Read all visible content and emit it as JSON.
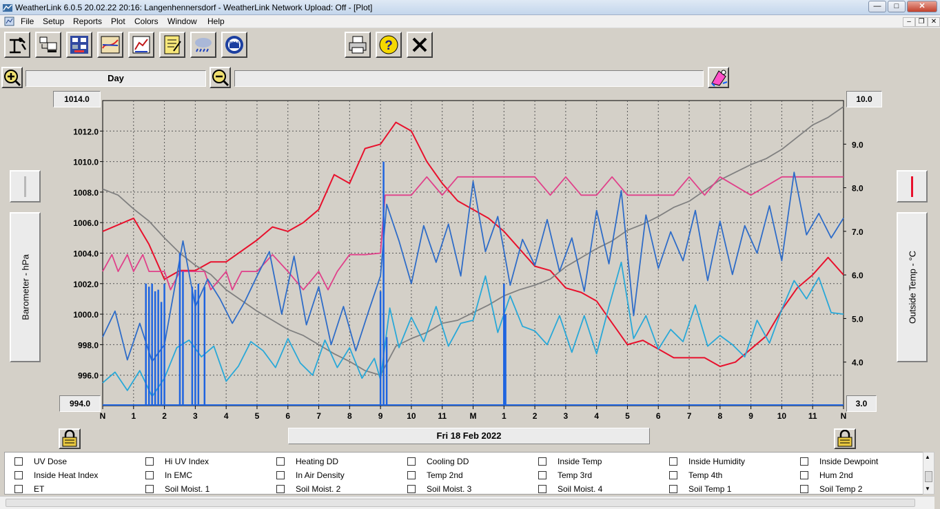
{
  "window": {
    "title": "WeatherLink 6.0.5  20.02.22  20:16: Langenhennersdorf - WeatherLink Network Upload: Off - [Plot]"
  },
  "menu": {
    "items": [
      "File",
      "Setup",
      "Reports",
      "Plot",
      "Colors",
      "Window",
      "Help"
    ]
  },
  "toolbar": {
    "icons": [
      "station-icon",
      "download-icon",
      "bulletin-icon",
      "plot-icon",
      "browse-icon",
      "notes-icon",
      "weather-icon",
      "noaa-icon",
      "print-icon",
      "help-icon",
      "close-icon"
    ],
    "noaa_label": "NOAA",
    "help_label": "?"
  },
  "span": {
    "label": "Day"
  },
  "left_axis": {
    "label": "Barometer - hPa",
    "max_label": "1014.0",
    "min_label": "994.0",
    "ticks": [
      "1012.0",
      "1010.0",
      "1008.0",
      "1006.0",
      "1004.0",
      "1002.0",
      "1000.0",
      "998.0",
      "996.0"
    ],
    "color": "#c0c0c0"
  },
  "right_axis": {
    "label": "Outside Temp - °C",
    "max_label": "10.0",
    "min_label": "3.0",
    "ticks": [
      "9.0",
      "8.0",
      "7.0",
      "6.0",
      "5.0",
      "4.0"
    ],
    "color": "#e8102c"
  },
  "date_label": "Fri 18 Feb 2022",
  "chart_data": {
    "type": "line",
    "x_tick_labels": [
      "N",
      "1",
      "2",
      "3",
      "4",
      "5",
      "6",
      "7",
      "8",
      "9",
      "10",
      "11",
      "M",
      "1",
      "2",
      "3",
      "4",
      "5",
      "6",
      "7",
      "8",
      "9",
      "10",
      "11",
      "N"
    ],
    "ylim_left": [
      994,
      1014
    ],
    "ylim_right": [
      3,
      10
    ],
    "grid": true,
    "series": [
      {
        "axis": "right",
        "color": "#e8102c",
        "hours": [
          0,
          1,
          1.5,
          2,
          2.5,
          3,
          3.5,
          4,
          5,
          5.5,
          6,
          6.5,
          7,
          7.5,
          8,
          8.5,
          9,
          9.5,
          10,
          10.5,
          11,
          11.5,
          12,
          12.5,
          13,
          13.5,
          14,
          14.5,
          15,
          15.5,
          16,
          16.5,
          17,
          17.5,
          18,
          18.5,
          19,
          19.5,
          20,
          20.5,
          21,
          21.5,
          22,
          22.5,
          23,
          23.5,
          24
        ],
        "values": [
          7.0,
          7.3,
          6.7,
          5.9,
          6.1,
          6.1,
          6.3,
          6.3,
          6.8,
          7.1,
          7.0,
          7.2,
          7.5,
          8.3,
          8.1,
          8.9,
          9.0,
          9.5,
          9.3,
          8.6,
          8.1,
          7.7,
          7.5,
          7.3,
          7.0,
          6.6,
          6.2,
          6.1,
          5.7,
          5.6,
          5.4,
          4.9,
          4.4,
          4.5,
          4.3,
          4.1,
          4.1,
          4.1,
          3.9,
          4.0,
          4.3,
          4.6,
          5.2,
          5.7,
          6.0,
          6.4,
          6.0
        ]
      },
      {
        "axis": "left",
        "color": "#808080",
        "hours": [
          0,
          0.5,
          1,
          1.5,
          2,
          2.5,
          3,
          3.5,
          4,
          4.5,
          5,
          5.5,
          6,
          6.5,
          7,
          7.5,
          8,
          8.5,
          9,
          9.5,
          10,
          10.5,
          11,
          11.5,
          12,
          12.5,
          13,
          13.5,
          14,
          14.5,
          15,
          15.5,
          16,
          16.5,
          17,
          17.5,
          18,
          18.5,
          19,
          19.5,
          20,
          20.5,
          21,
          21.5,
          22,
          22.5,
          23,
          23.5,
          24
        ],
        "values": [
          1008.2,
          1007.8,
          1006.9,
          1006.1,
          1005.0,
          1004.0,
          1003.2,
          1002.6,
          1001.6,
          1000.9,
          1000.2,
          999.6,
          999.0,
          998.6,
          998.0,
          997.4,
          996.9,
          996.3,
          996.0,
          997.9,
          998.4,
          998.8,
          999.4,
          999.6,
          1000.1,
          1000.6,
          1001.2,
          1001.6,
          1001.9,
          1002.3,
          1003.1,
          1003.7,
          1004.3,
          1004.8,
          1005.5,
          1005.9,
          1006.4,
          1007.0,
          1007.4,
          1008.1,
          1008.8,
          1009.3,
          1009.8,
          1010.2,
          1010.8,
          1011.6,
          1012.4,
          1012.9,
          1013.6
        ]
      },
      {
        "axis": "left",
        "color": "#e0408a",
        "hours": [
          0,
          0.3,
          0.5,
          0.8,
          1.0,
          1.3,
          1.5,
          2.0,
          2.2,
          2.5,
          3,
          3.3,
          3.5,
          4,
          4.2,
          4.5,
          5,
          5.5,
          6,
          6.5,
          7,
          7.3,
          7.6,
          8,
          8.5,
          9,
          9.15,
          10,
          10.5,
          11,
          11.5,
          12,
          12.5,
          13,
          14,
          14.5,
          15,
          15.5,
          16,
          16.5,
          17,
          17.5,
          18,
          18.5,
          19,
          19.5,
          20,
          21,
          22,
          23,
          24
        ],
        "values": [
          1002.8,
          1003.9,
          1002.8,
          1003.9,
          1002.8,
          1003.9,
          1002.8,
          1002.8,
          1001.6,
          1002.8,
          1002.8,
          1002.8,
          1001.6,
          1002.8,
          1001.6,
          1002.8,
          1002.8,
          1003.9,
          1002.8,
          1001.6,
          1002.8,
          1001.6,
          1002.8,
          1003.9,
          1003.9,
          1004.0,
          1007.8,
          1007.8,
          1009.0,
          1007.8,
          1009.0,
          1009.0,
          1009.0,
          1009.0,
          1009.0,
          1007.8,
          1009.0,
          1007.8,
          1007.8,
          1009.0,
          1007.8,
          1007.8,
          1007.8,
          1007.8,
          1009.0,
          1007.8,
          1009.0,
          1007.8,
          1009.0,
          1009.0,
          1009.0
        ]
      },
      {
        "axis": "left",
        "color": "#2e6cc8",
        "hours": [
          0,
          0.4,
          0.8,
          1.2,
          1.6,
          2.0,
          2.4,
          2.6,
          3.0,
          3.4,
          3.8,
          4.2,
          4.6,
          5.0,
          5.4,
          5.8,
          6.2,
          6.6,
          7.0,
          7.4,
          7.8,
          8.2,
          8.6,
          9.0,
          9.2,
          9.6,
          10.0,
          10.4,
          10.8,
          11.2,
          11.6,
          12.0,
          12.4,
          12.8,
          13.2,
          13.6,
          14.0,
          14.4,
          14.8,
          15.2,
          15.6,
          16.0,
          16.4,
          16.8,
          17.2,
          17.6,
          18.0,
          18.4,
          18.8,
          19.2,
          19.6,
          20.0,
          20.4,
          20.8,
          21.2,
          21.6,
          22.0,
          22.4,
          22.8,
          23.2,
          23.6,
          24
        ],
        "values": [
          998.5,
          1000.2,
          997.0,
          999.4,
          996.9,
          998.0,
          1002.5,
          1004.8,
          1000.5,
          1002.3,
          1001.0,
          999.4,
          1000.8,
          1002.5,
          1004.1,
          1000.0,
          1003.8,
          999.3,
          1001.8,
          998.0,
          1000.5,
          997.6,
          1000.1,
          1002.5,
          1007.2,
          1004.8,
          1002.0,
          1005.8,
          1003.4,
          1005.9,
          1002.5,
          1008.7,
          1004.1,
          1006.4,
          1001.9,
          1004.9,
          1003.2,
          1006.2,
          1002.8,
          1005.0,
          1001.5,
          1006.8,
          1003.3,
          1008.1,
          999.9,
          1006.5,
          1003.0,
          1005.4,
          1003.5,
          1006.8,
          1002.2,
          1006.1,
          1002.6,
          1005.8,
          1004.0,
          1007.1,
          1003.5,
          1009.3,
          1005.2,
          1006.6,
          1005.0,
          1006.3
        ]
      },
      {
        "axis": "left",
        "color": "#28a8d8",
        "hours": [
          0,
          0.4,
          0.8,
          1.2,
          1.6,
          2.0,
          2.4,
          2.8,
          3.2,
          3.6,
          4.0,
          4.4,
          4.8,
          5.2,
          5.6,
          6.0,
          6.4,
          6.8,
          7.2,
          7.6,
          8.0,
          8.4,
          8.8,
          9.0,
          9.3,
          9.6,
          10.0,
          10.4,
          10.8,
          11.2,
          11.6,
          12.0,
          12.4,
          12.8,
          13.2,
          13.6,
          14.0,
          14.4,
          14.8,
          15.2,
          15.6,
          16.0,
          16.4,
          16.8,
          17.2,
          17.6,
          18.0,
          18.4,
          18.8,
          19.2,
          19.6,
          20.0,
          20.4,
          20.8,
          21.2,
          21.6,
          22.0,
          22.4,
          22.8,
          23.2,
          23.6,
          24
        ],
        "values": [
          995.5,
          996.2,
          995.0,
          996.3,
          994.6,
          995.8,
          997.8,
          998.3,
          997.2,
          997.9,
          995.6,
          996.6,
          998.2,
          997.6,
          996.5,
          998.4,
          996.8,
          996.0,
          998.3,
          996.5,
          997.8,
          995.8,
          997.1,
          995.7,
          1000.4,
          997.8,
          999.8,
          998.2,
          1000.5,
          997.9,
          999.4,
          999.6,
          1002.5,
          998.8,
          1001.2,
          999.2,
          998.9,
          998.0,
          999.9,
          997.5,
          999.9,
          997.4,
          1000.5,
          1003.4,
          998.4,
          999.9,
          997.7,
          999.0,
          998.2,
          1000.6,
          997.9,
          998.6,
          998.0,
          997.2,
          999.6,
          998.1,
          1000.3,
          1002.2,
          1001.0,
          1002.4,
          1000.1,
          1000.0
        ]
      },
      {
        "axis": "left",
        "color": "#1e64e0",
        "type": "rain-spikes",
        "hours": [
          1.4,
          1.5,
          1.6,
          1.7,
          1.8,
          1.9,
          2.0,
          2.5,
          2.6,
          2.9,
          3.0,
          3.1,
          3.3,
          9.0,
          9.1,
          9.2,
          13.0,
          13.05
        ],
        "values": [
          1002.0,
          1001.8,
          1002.0,
          1001.5,
          1001.6,
          1000.8,
          1002.0,
          1004.0,
          1002.8,
          1001.8,
          1001.6,
          1002.0,
          1001.8,
          1001.5,
          1010.0,
          998.5,
          1002.0,
          1000.0
        ]
      }
    ]
  },
  "legend": {
    "items": [
      "UV Dose",
      "Hi UV Index",
      "Heating DD",
      "Cooling DD",
      "Inside Temp",
      "Inside Humidity",
      "Inside Dewpoint",
      "Inside Heat Index",
      "In EMC",
      "In Air Density",
      "Temp 2nd",
      "Temp 3rd",
      "Temp 4th",
      "Hum 2nd",
      "ET",
      "Soil Moist. 1",
      "Soil Moist. 2",
      "Soil Moist. 3",
      "Soil Moist. 4",
      "Soil Temp 1",
      "Soil Temp 2"
    ]
  }
}
